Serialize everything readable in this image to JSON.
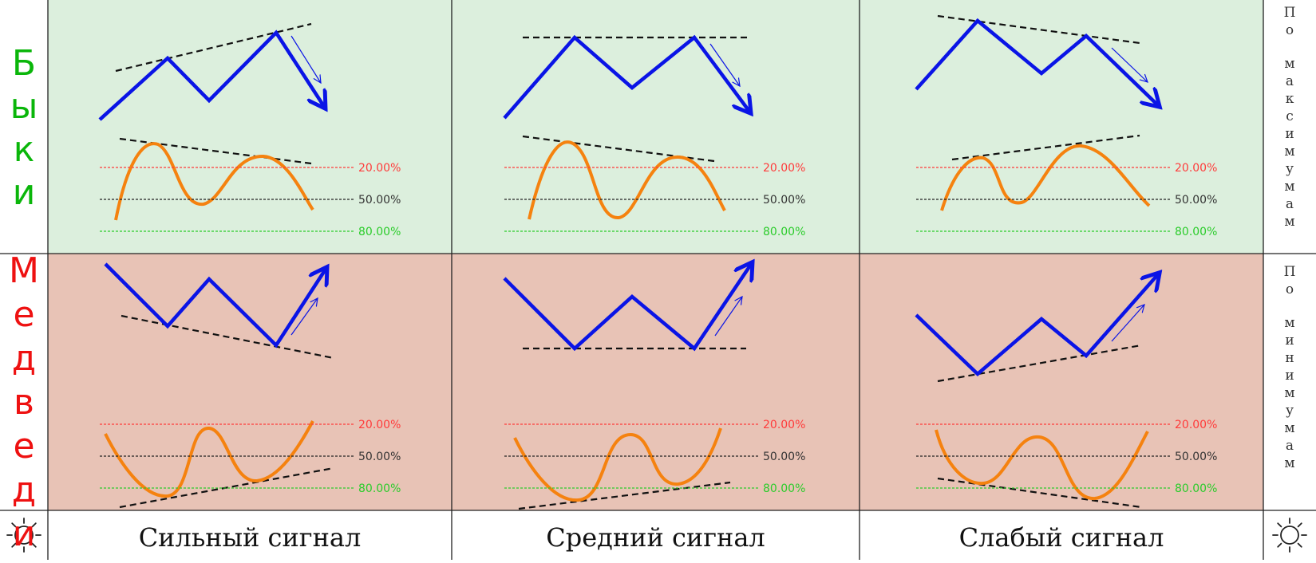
{
  "colors": {
    "bull_bg": "#dcefdd",
    "bear_bg": "#e8c3b6",
    "footer_bg": "#ffffff",
    "price_line": "#0a14e6",
    "oscillator_line": "#f5820f",
    "level_20": "#ff3b3b",
    "level_50": "#222222",
    "level_80": "#2bcc2b",
    "bull_text": "#0ab60a",
    "bear_text": "#ee1111",
    "grid": "#222222"
  },
  "rows": {
    "bulls": {
      "letters": [
        "Б",
        "ы",
        "к",
        "и"
      ]
    },
    "bears": {
      "letters": [
        "М",
        "е",
        "д",
        "в",
        "е",
        "д",
        "и"
      ]
    }
  },
  "right_labels": {
    "top": {
      "word1": [
        "П",
        "о"
      ],
      "word2": [
        "м",
        "а",
        "к",
        "с",
        "и",
        "м",
        "у",
        "м",
        "а",
        "м"
      ]
    },
    "bottom": {
      "word1": [
        "П",
        "о"
      ],
      "word2": [
        "м",
        "и",
        "н",
        "и",
        "м",
        "у",
        "м",
        "а",
        "м"
      ]
    }
  },
  "levels": [
    "20.00%",
    "50.00%",
    "80.00%"
  ],
  "columns": [
    {
      "label": "Сильный сигнал"
    },
    {
      "label": "Средний сигнал"
    },
    {
      "label": "Слабый сигнал"
    }
  ],
  "footer": {
    "left_icon": "sun-icon",
    "right_icon": "sun-icon"
  }
}
